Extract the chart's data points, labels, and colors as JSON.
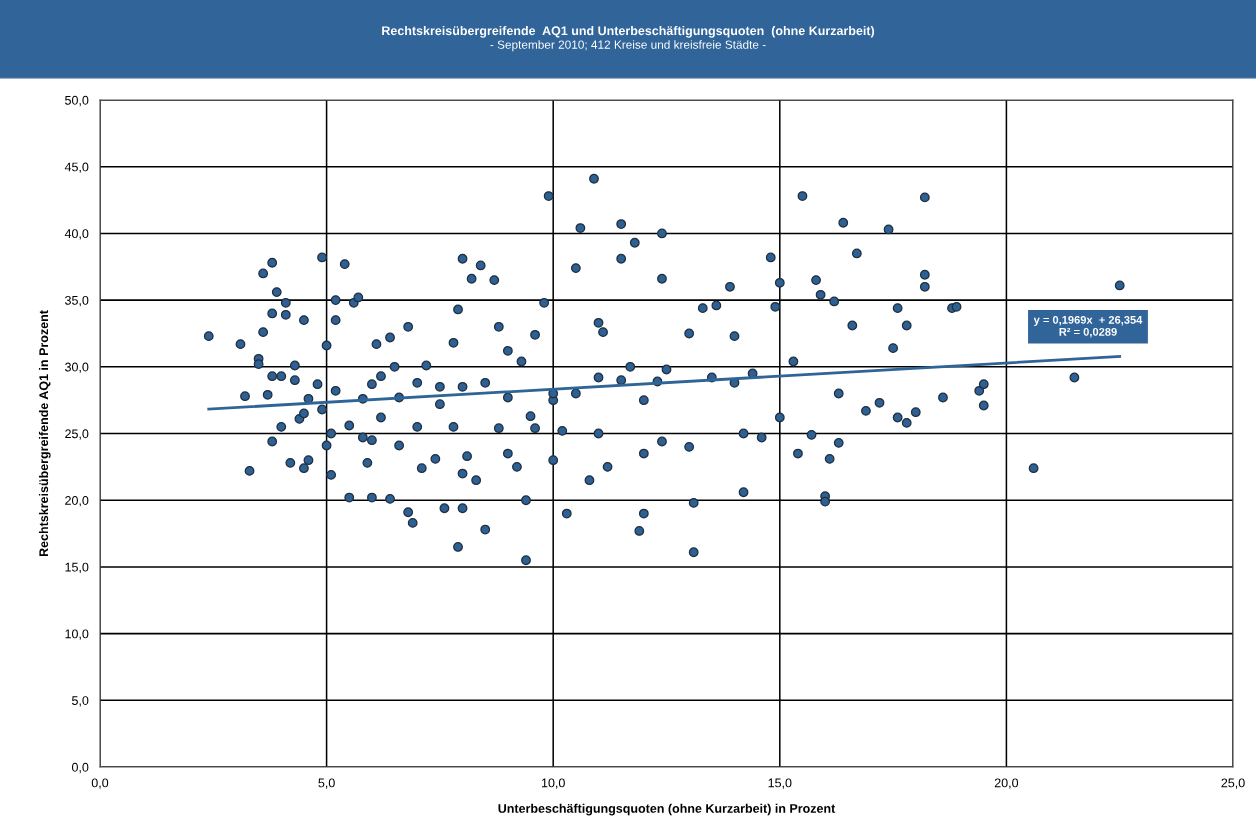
{
  "chart_data": {
    "type": "scatter",
    "title": "Rechtskreisübergreifende  AQ1 und Unterbeschäftigungsquoten  (ohne Kurzarbeit)",
    "subtitle": "- September 2010; 412 Kreise und kreisfreie Städte -",
    "xlabel": "Unterbeschäftigungsquoten (ohne Kurzarbeit) in Prozent",
    "ylabel": "Rechtskreisübergreifende AQ1 in Prozent",
    "xlim": [
      0,
      25
    ],
    "ylim": [
      0,
      50
    ],
    "xticks": [
      {
        "value": 0,
        "label": "0,0"
      },
      {
        "value": 5,
        "label": "5,0"
      },
      {
        "value": 10,
        "label": "10,0"
      },
      {
        "value": 15,
        "label": "15,0"
      },
      {
        "value": 20,
        "label": "20,0"
      },
      {
        "value": 25,
        "label": "25,0"
      }
    ],
    "yticks": [
      {
        "value": 0,
        "label": "0,0"
      },
      {
        "value": 5,
        "label": "5,0"
      },
      {
        "value": 10,
        "label": "10,0"
      },
      {
        "value": 15,
        "label": "15,0"
      },
      {
        "value": 20,
        "label": "20,0"
      },
      {
        "value": 25,
        "label": "25,0"
      },
      {
        "value": 30,
        "label": "30,0"
      },
      {
        "value": 35,
        "label": "35,0"
      },
      {
        "value": 40,
        "label": "40,0"
      },
      {
        "value": 45,
        "label": "45,0"
      },
      {
        "value": 50,
        "label": "50,0"
      }
    ],
    "grid": true,
    "legend": false,
    "marker": "circle",
    "series": [
      {
        "color": "#2e6094",
        "x": [
          2.4,
          3.1,
          3.2,
          3.3,
          3.5,
          3.5,
          3.6,
          3.6,
          3.8,
          3.7,
          3.8,
          3.9,
          3.8,
          3.8,
          4.0,
          4.0,
          4.1,
          4.1,
          4.2,
          4.3,
          4.3,
          4.4,
          4.5,
          4.5,
          4.6,
          4.6,
          4.8,
          4.9,
          5.0,
          4.9,
          5.0,
          5.1,
          5.1,
          5.2,
          5.4,
          5.5,
          5.6,
          5.7,
          5.8,
          5.8,
          5.9,
          6.0,
          6.1,
          6.2,
          6.4,
          6.4,
          6.6,
          6.6,
          6.8,
          6.8,
          6.9,
          7.1,
          7.2,
          7.4,
          7.5,
          7.6,
          7.8,
          7.9,
          7.9,
          8.0,
          8.0,
          8.1,
          8.2,
          8.3,
          8.4,
          8.5,
          8.7,
          8.8,
          9.0,
          9.2,
          9.3,
          9.4,
          9.4,
          9.6,
          9.8,
          9.9,
          10.0,
          10.2,
          10.3,
          10.5,
          10.6,
          10.8,
          10.9,
          11.0,
          11.1,
          11.2,
          11.5,
          11.5,
          11.8,
          11.9,
          12.0,
          12.4,
          12.4,
          12.3,
          12.4,
          13.0,
          13.1,
          13.1,
          13.3,
          13.6,
          13.9,
          14.0,
          14.2,
          14.2,
          14.4,
          14.6,
          14.8,
          14.9,
          15.0,
          15.0,
          15.3,
          15.4,
          15.5,
          15.7,
          15.8,
          15.9,
          16.0,
          16.0,
          16.1,
          16.2,
          16.3,
          16.3,
          16.4,
          16.6,
          16.7,
          16.9,
          17.2,
          17.4,
          17.5,
          17.6,
          17.6,
          17.8,
          17.8,
          18.0,
          18.2,
          18.2,
          18.2,
          18.6,
          18.8,
          18.9,
          19.4,
          19.5,
          19.5,
          20.6,
          21.5,
          22.5,
          6.0,
          6.5,
          7.0,
          7.5,
          8.0,
          8.5,
          9.0,
          9.5,
          10.5,
          11.0,
          11.5,
          12.0,
          12.5,
          13.5,
          14.0,
          10.0,
          11.0,
          12.0,
          13.0,
          9.0,
          8.0,
          7.0,
          6.0,
          5.5,
          4.5,
          5.2,
          6.2,
          9.6,
          10.0,
          7.8,
          8.8,
          5.2,
          11.7
        ],
        "values": [
          32.3,
          31.7,
          27.8,
          22.2,
          30.6,
          30.2,
          32.6,
          37.0,
          37.8,
          27.9,
          24.4,
          35.6,
          34.0,
          29.3,
          29.3,
          25.5,
          33.9,
          34.8,
          22.8,
          30.1,
          29.0,
          26.1,
          22.4,
          33.5,
          23.0,
          27.6,
          28.7,
          38.2,
          31.6,
          26.8,
          24.1,
          21.9,
          25.0,
          35.0,
          37.7,
          20.2,
          34.8,
          35.2,
          27.6,
          24.7,
          22.8,
          20.2,
          31.7,
          26.2,
          32.2,
          20.1,
          27.7,
          24.1,
          33.0,
          19.1,
          18.3,
          22.4,
          30.1,
          23.1,
          28.5,
          19.4,
          25.5,
          16.5,
          34.3,
          38.1,
          19.4,
          23.3,
          36.6,
          21.5,
          37.6,
          17.8,
          36.5,
          25.4,
          31.2,
          22.5,
          30.4,
          15.5,
          20.0,
          25.4,
          34.8,
          42.8,
          23.0,
          25.2,
          19.0,
          37.4,
          40.4,
          21.5,
          44.1,
          33.3,
          32.6,
          22.5,
          40.7,
          38.1,
          39.3,
          17.7,
          19.0,
          40.0,
          36.6,
          28.9,
          24.4,
          32.5,
          19.8,
          16.1,
          34.4,
          34.6,
          36.0,
          32.3,
          20.6,
          25.0,
          29.5,
          24.7,
          38.2,
          34.5,
          36.3,
          26.2,
          30.4,
          23.5,
          42.8,
          24.9,
          36.5,
          35.4,
          20.3,
          19.9,
          23.1,
          34.9,
          28.0,
          24.3,
          40.8,
          33.1,
          38.5,
          26.7,
          27.3,
          40.3,
          31.4,
          26.2,
          34.4,
          33.1,
          25.8,
          26.6,
          36.9,
          36.0,
          42.7,
          27.7,
          34.4,
          34.5,
          28.2,
          28.7,
          27.1,
          22.4,
          29.2,
          36.1,
          28.7,
          30.0,
          28.8,
          27.2,
          28.5,
          28.8,
          27.7,
          26.3,
          28.0,
          29.2,
          29.0,
          27.5,
          29.8,
          29.2,
          28.8,
          27.5,
          25.0,
          23.5,
          24.0,
          23.5,
          22.0,
          25.5,
          24.5,
          25.6,
          26.5,
          28.2,
          29.3,
          32.4,
          28.0,
          31.8,
          33.0,
          33.5,
          30.0
        ]
      },
      {
        "type": "line",
        "color": "#2e6496",
        "marker": "none",
        "x": [
          2.4,
          22.5
        ],
        "values": [
          26.83,
          30.78
        ]
      }
    ],
    "annotations": [
      "y = 0,1969x  + 26,354\nR² = 0,0289"
    ]
  }
}
